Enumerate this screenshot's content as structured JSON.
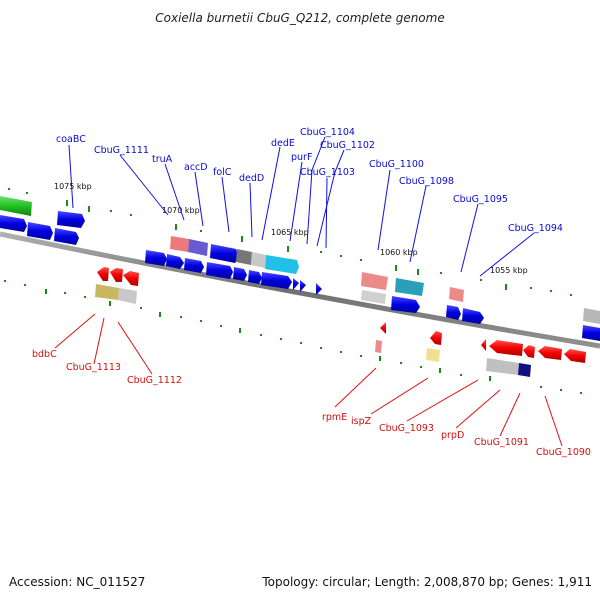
{
  "title": "Coxiella burnetii CbuG_Q212, complete genome",
  "footer": {
    "accession": "Accession: NC_011527",
    "summary": "Topology: circular; Length: 2,008,870 bp; Genes: 1,911"
  },
  "scale_labels": [
    "1075 kbp",
    "1070 kbp",
    "1065 kbp",
    "1060 kbp",
    "1055 kbp"
  ],
  "forward_genes": [
    "coaBC",
    "CbuG_1111",
    "truA",
    "accD",
    "folC",
    "dedD",
    "dedE",
    "CbuG_1104",
    "purF",
    "CbuG_1102",
    "CbuG_1103",
    "CbuG_1100",
    "CbuG_1098",
    "CbuG_1095",
    "CbuG_1094"
  ],
  "reverse_genes": [
    "bdbC",
    "CbuG_1113",
    "CbuG_1112",
    "rpmE",
    "ispZ",
    "CbuG_1093",
    "prpD",
    "CbuG_1091",
    "CbuG_1090"
  ],
  "colors": {
    "forward_strand": "#0000ee",
    "reverse_strand": "#ee0000",
    "backbone": "#808080",
    "tick": "#228b22"
  }
}
